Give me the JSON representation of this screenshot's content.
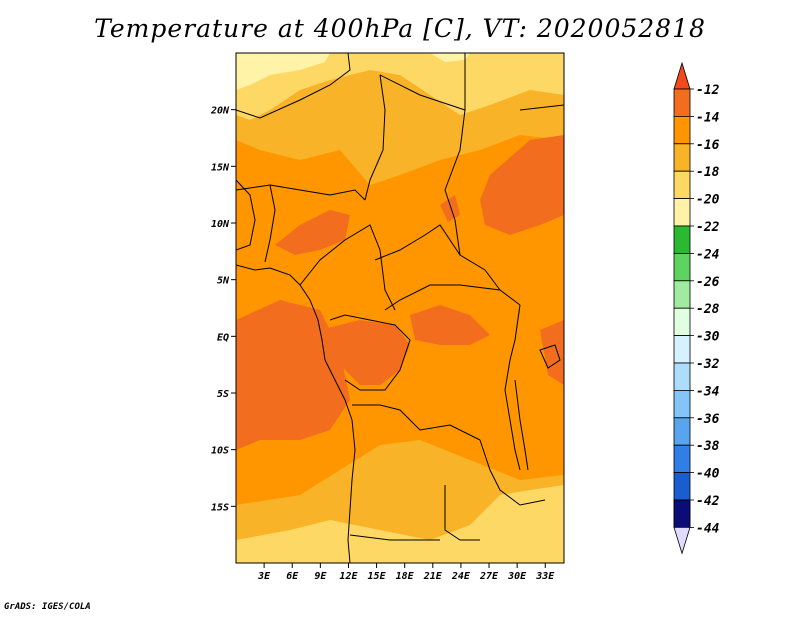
{
  "title": "Temperature at 400hPa [C], VT: 2020052818",
  "credit": "GrADS: IGES/COLA",
  "map": {
    "field": "temperature",
    "lon_range": [
      0,
      35
    ],
    "lat_range": [
      -20,
      25
    ],
    "x_ticks": [
      "3E",
      "6E",
      "9E",
      "12E",
      "15E",
      "18E",
      "21E",
      "24E",
      "27E",
      "30E",
      "33E"
    ],
    "x_tick_values": [
      3,
      6,
      9,
      12,
      15,
      18,
      21,
      24,
      27,
      30,
      33
    ],
    "y_ticks": [
      "20N",
      "15N",
      "10N",
      "5N",
      "EQ",
      "5S",
      "10S",
      "15S"
    ],
    "y_tick_values": [
      20,
      15,
      10,
      5,
      0,
      -5,
      -10,
      -15
    ]
  },
  "colorbar": {
    "labels": [
      "-12",
      "-14",
      "-16",
      "-18",
      "-20",
      "-22",
      "-24",
      "-26",
      "-28",
      "-30",
      "-32",
      "-34",
      "-36",
      "-38",
      "-40",
      "-42",
      "-44"
    ],
    "colors": [
      "#f26e1e",
      "#ff9600",
      "#f8b328",
      "#fed865",
      "#fff3a8",
      "#2bb931",
      "#5fd360",
      "#a1eba1",
      "#e0ffe0",
      "#d6f1ff",
      "#aedcfc",
      "#84c4f7",
      "#58a5ef",
      "#2f7fe5",
      "#1a5dcf",
      "#0c37aa",
      "#0c0c78"
    ],
    "top_arrow_color": "#f24a1b",
    "bottom_arrow_color": "#e1dcff"
  },
  "colors": {
    "c_m12_m14": "#f26e1e",
    "c_m14_m16": "#ff9600",
    "c_m16_m18": "#f8b328",
    "c_m18_m20": "#fed865",
    "c_m20_m22": "#fff3a8"
  }
}
